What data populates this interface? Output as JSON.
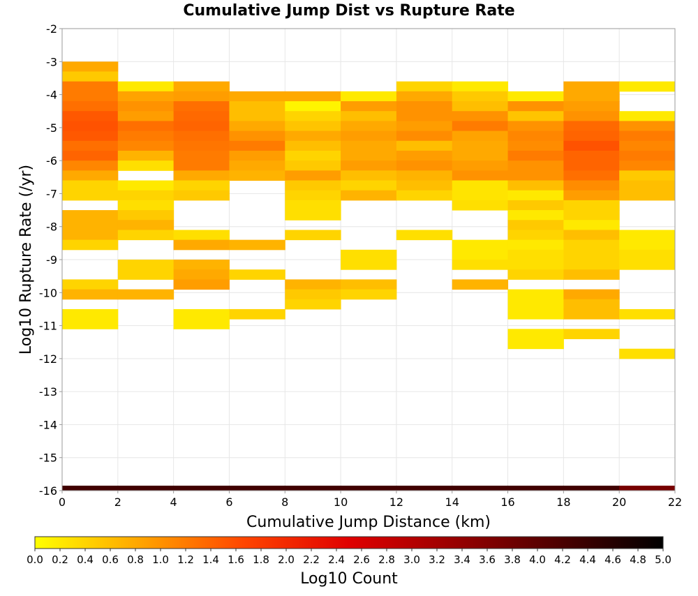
{
  "chart_data": {
    "type": "heatmap",
    "title": "Cumulative Jump Dist vs Rupture Rate",
    "xlabel": "Cumulative Jump Distance (km)",
    "ylabel": "Log10 Rupture Rate (/yr)",
    "xlim": [
      0,
      22
    ],
    "ylim": [
      -16,
      -2
    ],
    "x_ticks": [
      "0",
      "2",
      "4",
      "6",
      "8",
      "10",
      "12",
      "14",
      "16",
      "18",
      "20",
      "22"
    ],
    "y_ticks": [
      "-2",
      "-3",
      "-4",
      "-5",
      "-6",
      "-7",
      "-8",
      "-9",
      "-10",
      "-11",
      "-12",
      "-13",
      "-14",
      "-15",
      "-16"
    ],
    "x_bin_width": 2,
    "y_bin_height": 0.3,
    "grid": true,
    "colorbar": {
      "label": "Log10 Count",
      "range": [
        0.0,
        5.0
      ],
      "placement": "bottom",
      "ticks": [
        "0.0",
        "0.2",
        "0.4",
        "0.6",
        "0.8",
        "1.0",
        "1.2",
        "1.4",
        "1.6",
        "1.8",
        "2.0",
        "2.2",
        "2.4",
        "2.6",
        "2.8",
        "3.0",
        "3.2",
        "3.4",
        "3.6",
        "3.8",
        "4.0",
        "4.2",
        "4.4",
        "4.6",
        "4.8",
        "5.0"
      ],
      "color_stops": [
        "#ffff00",
        "#ffa500",
        "#ff4500",
        "#e00000",
        "#990000",
        "#4d0000",
        "#000000"
      ]
    },
    "columns": [
      {
        "x": 0,
        "cells": [
          [
            -3.15,
            0.8
          ],
          [
            -3.45,
            0.5
          ],
          [
            -3.75,
            1.2
          ],
          [
            -4.05,
            1.2
          ],
          [
            -4.35,
            1.3
          ],
          [
            -4.65,
            1.5
          ],
          [
            -4.95,
            1.55
          ],
          [
            -5.25,
            1.5
          ],
          [
            -5.55,
            1.3
          ],
          [
            -5.85,
            1.4
          ],
          [
            -6.15,
            1.1
          ],
          [
            -6.45,
            0.8
          ],
          [
            -6.75,
            0.4
          ],
          [
            -7.05,
            0.4
          ],
          [
            -7.65,
            0.7
          ],
          [
            -7.95,
            0.7
          ],
          [
            -8.25,
            0.7
          ],
          [
            -8.55,
            0.4
          ],
          [
            -9.75,
            0.4
          ],
          [
            -10.05,
            0.7
          ],
          [
            -10.65,
            0.2
          ],
          [
            -10.95,
            0.2
          ],
          [
            -16.0,
            4.3
          ]
        ]
      },
      {
        "x": 2,
        "cells": [
          [
            -3.75,
            0.2
          ],
          [
            -4.05,
            0.85
          ],
          [
            -4.35,
            1.0
          ],
          [
            -4.65,
            0.9
          ],
          [
            -4.95,
            1.3
          ],
          [
            -5.25,
            1.2
          ],
          [
            -5.55,
            1.1
          ],
          [
            -5.85,
            0.7
          ],
          [
            -6.15,
            0.3
          ],
          [
            -6.75,
            0.2
          ],
          [
            -7.05,
            0.4
          ],
          [
            -7.35,
            0.3
          ],
          [
            -7.65,
            0.5
          ],
          [
            -7.95,
            0.7
          ],
          [
            -8.25,
            0.4
          ],
          [
            -9.15,
            0.4
          ],
          [
            -9.45,
            0.4
          ],
          [
            -10.05,
            0.7
          ],
          [
            -16.0,
            4.3
          ]
        ]
      },
      {
        "x": 4,
        "cells": [
          [
            -3.75,
            0.8
          ],
          [
            -4.05,
            0.9
          ],
          [
            -4.35,
            1.3
          ],
          [
            -4.65,
            1.35
          ],
          [
            -4.95,
            1.4
          ],
          [
            -5.25,
            1.3
          ],
          [
            -5.55,
            1.25
          ],
          [
            -5.85,
            1.2
          ],
          [
            -6.15,
            1.2
          ],
          [
            -6.45,
            0.8
          ],
          [
            -6.75,
            0.4
          ],
          [
            -7.05,
            0.5
          ],
          [
            -8.25,
            0.3
          ],
          [
            -8.55,
            0.8
          ],
          [
            -9.15,
            0.7
          ],
          [
            -9.45,
            0.8
          ],
          [
            -9.75,
            0.9
          ],
          [
            -10.65,
            0.2
          ],
          [
            -10.95,
            0.2
          ],
          [
            -16.0,
            4.3
          ]
        ]
      },
      {
        "x": 6,
        "cells": [
          [
            -4.05,
            0.8
          ],
          [
            -4.35,
            0.6
          ],
          [
            -4.65,
            0.6
          ],
          [
            -4.95,
            0.8
          ],
          [
            -5.25,
            1.0
          ],
          [
            -5.55,
            1.2
          ],
          [
            -5.85,
            0.9
          ],
          [
            -6.15,
            0.8
          ],
          [
            -6.45,
            0.7
          ],
          [
            -8.55,
            0.7
          ],
          [
            -9.45,
            0.4
          ],
          [
            -10.65,
            0.4
          ],
          [
            -16.0,
            4.3
          ]
        ]
      },
      {
        "x": 8,
        "cells": [
          [
            -4.05,
            0.8
          ],
          [
            -4.35,
            0.1
          ],
          [
            -4.65,
            0.4
          ],
          [
            -4.95,
            0.55
          ],
          [
            -5.25,
            0.8
          ],
          [
            -5.55,
            0.6
          ],
          [
            -5.85,
            0.4
          ],
          [
            -6.15,
            0.5
          ],
          [
            -6.45,
            0.9
          ],
          [
            -6.75,
            0.5
          ],
          [
            -7.05,
            0.4
          ],
          [
            -7.35,
            0.3
          ],
          [
            -7.65,
            0.3
          ],
          [
            -8.25,
            0.4
          ],
          [
            -9.75,
            0.7
          ],
          [
            -10.05,
            0.5
          ],
          [
            -10.35,
            0.4
          ],
          [
            -16.0,
            4.3
          ]
        ]
      },
      {
        "x": 10,
        "cells": [
          [
            -4.05,
            0.2
          ],
          [
            -4.35,
            0.9
          ],
          [
            -4.65,
            0.6
          ],
          [
            -4.95,
            0.8
          ],
          [
            -5.25,
            0.9
          ],
          [
            -5.55,
            0.8
          ],
          [
            -5.85,
            0.8
          ],
          [
            -6.15,
            0.9
          ],
          [
            -6.45,
            0.6
          ],
          [
            -6.75,
            0.4
          ],
          [
            -7.05,
            0.7
          ],
          [
            -8.85,
            0.3
          ],
          [
            -9.15,
            0.3
          ],
          [
            -9.75,
            0.6
          ],
          [
            -10.05,
            0.4
          ],
          [
            -16.0,
            4.3
          ]
        ]
      },
      {
        "x": 12,
        "cells": [
          [
            -3.75,
            0.4
          ],
          [
            -4.05,
            0.8
          ],
          [
            -4.35,
            1.0
          ],
          [
            -4.65,
            1.0
          ],
          [
            -4.95,
            0.9
          ],
          [
            -5.25,
            1.05
          ],
          [
            -5.55,
            0.6
          ],
          [
            -5.85,
            0.9
          ],
          [
            -6.15,
            1.0
          ],
          [
            -6.45,
            0.7
          ],
          [
            -6.75,
            0.6
          ],
          [
            -7.05,
            0.4
          ],
          [
            -8.25,
            0.3
          ],
          [
            -16.0,
            4.3
          ]
        ]
      },
      {
        "x": 14,
        "cells": [
          [
            -3.75,
            0.2
          ],
          [
            -4.05,
            0.5
          ],
          [
            -4.35,
            0.6
          ],
          [
            -4.65,
            1.0
          ],
          [
            -4.95,
            1.2
          ],
          [
            -5.25,
            0.85
          ],
          [
            -5.55,
            0.8
          ],
          [
            -5.85,
            0.8
          ],
          [
            -6.15,
            0.9
          ],
          [
            -6.45,
            1.0
          ],
          [
            -6.75,
            0.25
          ],
          [
            -7.05,
            0.25
          ],
          [
            -7.35,
            0.3
          ],
          [
            -8.55,
            0.2
          ],
          [
            -8.85,
            0.2
          ],
          [
            -9.15,
            0.3
          ],
          [
            -9.75,
            0.7
          ],
          [
            -16.0,
            4.3
          ]
        ]
      },
      {
        "x": 16,
        "cells": [
          [
            -4.05,
            0.2
          ],
          [
            -4.35,
            1.0
          ],
          [
            -4.65,
            0.55
          ],
          [
            -4.95,
            1.0
          ],
          [
            -5.25,
            1.1
          ],
          [
            -5.55,
            1.05
          ],
          [
            -5.85,
            1.2
          ],
          [
            -6.15,
            1.0
          ],
          [
            -6.45,
            1.0
          ],
          [
            -6.75,
            0.6
          ],
          [
            -7.05,
            0.2
          ],
          [
            -7.35,
            0.5
          ],
          [
            -7.65,
            0.2
          ],
          [
            -7.95,
            0.5
          ],
          [
            -8.25,
            0.4
          ],
          [
            -8.55,
            0.2
          ],
          [
            -8.85,
            0.3
          ],
          [
            -9.15,
            0.3
          ],
          [
            -9.45,
            0.4
          ],
          [
            -10.05,
            0.2
          ],
          [
            -10.35,
            0.2
          ],
          [
            -10.65,
            0.2
          ],
          [
            -11.25,
            0.2
          ],
          [
            -11.55,
            0.2
          ],
          [
            -16.0,
            4.3
          ]
        ]
      },
      {
        "x": 18,
        "cells": [
          [
            -3.75,
            0.8
          ],
          [
            -4.05,
            0.8
          ],
          [
            -4.35,
            0.9
          ],
          [
            -4.65,
            1.0
          ],
          [
            -4.95,
            1.35
          ],
          [
            -5.25,
            1.4
          ],
          [
            -5.55,
            1.55
          ],
          [
            -5.85,
            1.4
          ],
          [
            -6.15,
            1.4
          ],
          [
            -6.45,
            1.3
          ],
          [
            -6.75,
            1.05
          ],
          [
            -7.05,
            0.9
          ],
          [
            -7.35,
            0.4
          ],
          [
            -7.65,
            0.4
          ],
          [
            -7.95,
            0.2
          ],
          [
            -8.25,
            0.6
          ],
          [
            -8.55,
            0.4
          ],
          [
            -8.85,
            0.4
          ],
          [
            -9.15,
            0.4
          ],
          [
            -9.45,
            0.6
          ],
          [
            -10.05,
            0.8
          ],
          [
            -10.35,
            0.6
          ],
          [
            -10.65,
            0.6
          ],
          [
            -11.25,
            0.4
          ],
          [
            -16.0,
            4.3
          ]
        ]
      },
      {
        "x": 20,
        "cells": [
          [
            -3.75,
            0.2
          ],
          [
            -4.65,
            0.2
          ],
          [
            -4.95,
            1.0
          ],
          [
            -5.25,
            1.2
          ],
          [
            -5.55,
            1.1
          ],
          [
            -5.85,
            1.2
          ],
          [
            -6.15,
            1.1
          ],
          [
            -6.45,
            0.5
          ],
          [
            -6.75,
            0.6
          ],
          [
            -7.05,
            0.6
          ],
          [
            -8.25,
            0.2
          ],
          [
            -8.55,
            0.2
          ],
          [
            -8.85,
            0.3
          ],
          [
            -9.15,
            0.3
          ],
          [
            -10.65,
            0.3
          ],
          [
            -11.85,
            0.3
          ],
          [
            -16.0,
            3.7
          ]
        ]
      }
    ]
  }
}
